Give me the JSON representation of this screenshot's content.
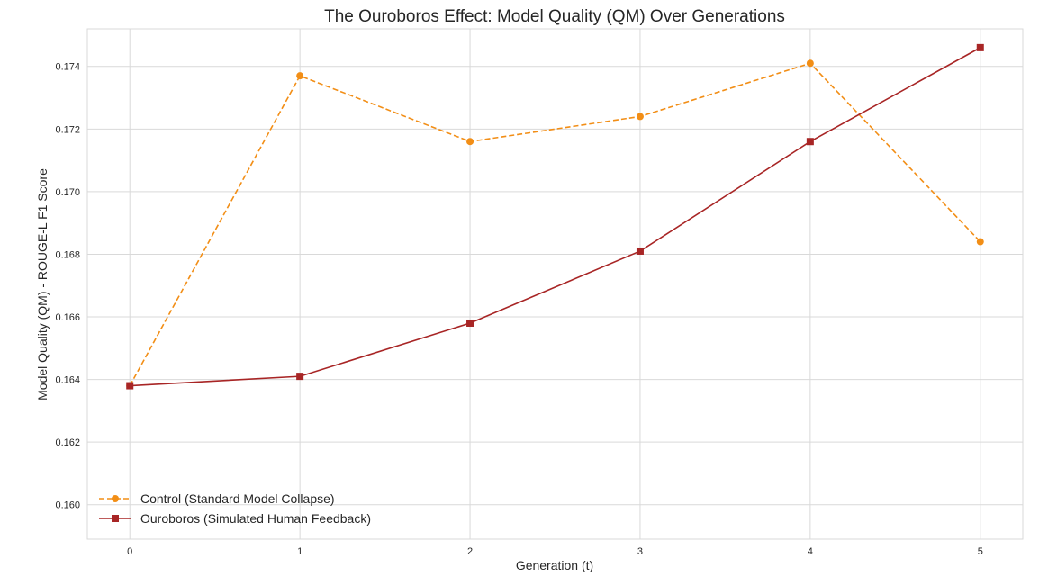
{
  "chart_data": {
    "type": "line",
    "title": "The Ouroboros Effect: Model Quality (QM) Over Generations",
    "xlabel": "Generation (t)",
    "ylabel": "Model Quality (QM) - ROUGE-L F1 Score",
    "x": [
      0,
      1,
      2,
      3,
      4,
      5
    ],
    "x_ticks": [
      "0",
      "1",
      "2",
      "3",
      "4",
      "5"
    ],
    "y_ticks": [
      "0.160",
      "0.162",
      "0.164",
      "0.166",
      "0.168",
      "0.170",
      "0.172",
      "0.174"
    ],
    "xlim": [
      -0.25,
      5.25
    ],
    "ylim": [
      0.1589,
      0.1752
    ],
    "grid": true,
    "legend_position": "lower-left",
    "series": [
      {
        "name": "Control (Standard Model Collapse)",
        "values": [
          0.1638,
          0.1737,
          0.1716,
          0.1724,
          0.1741,
          0.1684
        ],
        "color": "#f28e16",
        "line_style": "dashed",
        "marker": "circle"
      },
      {
        "name": "Ouroboros (Simulated Human Feedback)",
        "values": [
          0.1638,
          0.1641,
          0.1658,
          0.1681,
          0.1716,
          0.1746
        ],
        "color": "#a82525",
        "line_style": "solid",
        "marker": "square"
      }
    ]
  }
}
